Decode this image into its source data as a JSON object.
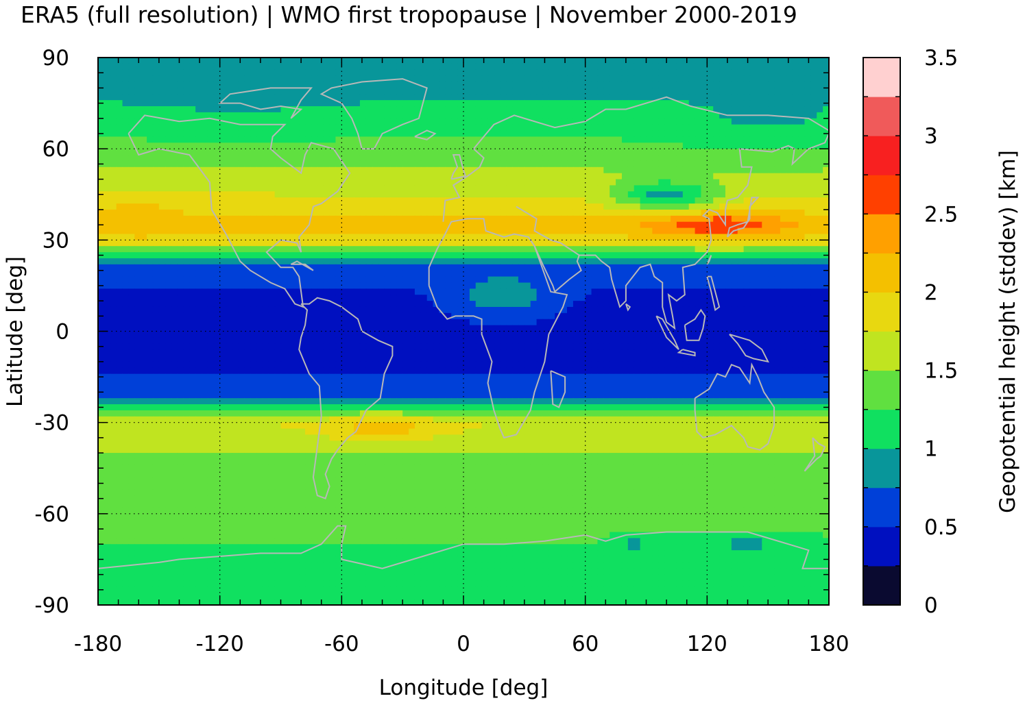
{
  "title": "ERA5 (full resolution) | WMO first tropopause | November 2000-2019",
  "chart_data": {
    "type": "heatmap",
    "xlabel": "Longitude [deg]",
    "ylabel": "Latitude [deg]",
    "xlim": [
      -180,
      180
    ],
    "ylim": [
      -90,
      90
    ],
    "x_ticks": [
      "-180",
      "-120",
      "-60",
      "0",
      "60",
      "120",
      "180"
    ],
    "y_ticks": [
      "90",
      "60",
      "30",
      "0",
      "-30",
      "-60",
      "-90"
    ],
    "grid": true,
    "colorbar": {
      "label": "Geopotential height (stddev) [km]",
      "range": [
        0,
        3.5
      ],
      "step": 0.25,
      "tick_labels": [
        "0",
        "0.5",
        "1",
        "1.5",
        "2",
        "2.5",
        "3",
        "3.5"
      ],
      "colors": [
        "#0a0a30",
        "#0010c0",
        "#0040d8",
        "#08969a",
        "#10e060",
        "#60e040",
        "#c0e420",
        "#e8d810",
        "#f4c000",
        "#ffa000",
        "#ff4000",
        "#f82020",
        "#f05a5a",
        "#ffd0d0"
      ]
    },
    "zonal_profile": {
      "lat": [
        -90,
        -80,
        -70,
        -60,
        -50,
        -40,
        -30,
        -25,
        -20,
        -10,
        0,
        10,
        20,
        25,
        30,
        35,
        40,
        50,
        60,
        70,
        80,
        90
      ],
      "value": [
        1.1,
        1.2,
        1.25,
        1.3,
        1.4,
        1.5,
        1.75,
        1.1,
        0.55,
        0.45,
        0.4,
        0.45,
        0.55,
        1.2,
        1.9,
        2.1,
        1.9,
        1.6,
        1.3,
        1.15,
        0.9,
        0.9
      ]
    },
    "highlights": [
      {
        "lon_center": 125,
        "lat_center": 35,
        "lon_width": 35,
        "lat_width": 4,
        "value": 2.7
      },
      {
        "lon_center": 100,
        "lat_center": 45,
        "lon_width": 25,
        "lat_width": 5,
        "value": 0.9
      },
      {
        "lon_center": -40,
        "lat_center": -32,
        "lon_width": 30,
        "lat_width": 4,
        "value": 2.1
      },
      {
        "lon_center": -160,
        "lat_center": 37,
        "lon_width": 18,
        "lat_width": 5,
        "value": 2.2
      },
      {
        "lon_center": -110,
        "lat_center": 78,
        "lon_width": 60,
        "lat_width": 8,
        "value": 0.95
      },
      {
        "lon_center": 150,
        "lat_center": 72,
        "lon_width": 40,
        "lat_width": 10,
        "value": 0.95
      },
      {
        "lon_center": 20,
        "lat_center": 12,
        "lon_width": 25,
        "lat_width": 8,
        "value": 0.9
      },
      {
        "lon_center": 140,
        "lat_center": -70,
        "lon_width": 25,
        "lat_width": 3,
        "value": 0.95
      },
      {
        "lon_center": 85,
        "lat_center": -70,
        "lon_width": 10,
        "lat_width": 3,
        "value": 0.95
      }
    ]
  }
}
